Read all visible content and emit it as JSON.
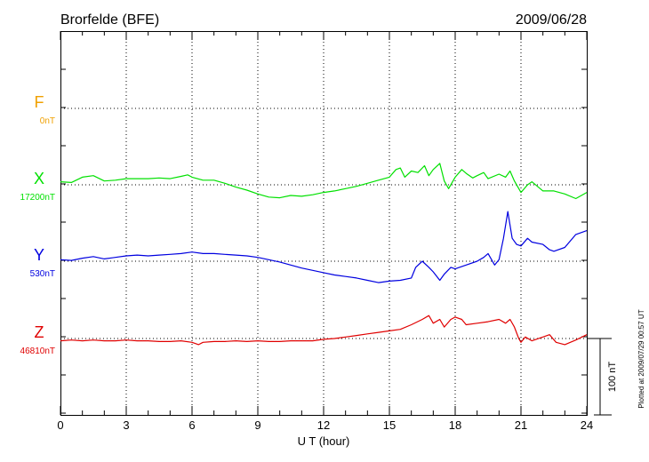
{
  "header": {
    "station": "Brorfelde (BFE)",
    "date": "2009/06/28"
  },
  "footer": {
    "plotted": "Plotted at 2009/07/29 00:57 UT"
  },
  "chart_data": {
    "type": "line",
    "xlabel": "U T (hour)",
    "xlim": [
      0,
      24
    ],
    "x_ticks": [
      0,
      3,
      6,
      9,
      12,
      15,
      18,
      21,
      24
    ],
    "grid": true,
    "scale_bar": {
      "label": "100 nT",
      "nT": 100
    },
    "channels": [
      {
        "name": "F",
        "baseline": "0nT",
        "color": "#f0a000",
        "data": []
      },
      {
        "name": "X",
        "baseline": "17200nT",
        "color": "#00e000",
        "data": [
          [
            0,
            -4
          ],
          [
            0.5,
            -3
          ],
          [
            1,
            -10
          ],
          [
            1.5,
            -12
          ],
          [
            2,
            -5
          ],
          [
            2.5,
            -6
          ],
          [
            3,
            -8
          ],
          [
            3.5,
            -8
          ],
          [
            4,
            -8
          ],
          [
            4.5,
            -9
          ],
          [
            5,
            -8
          ],
          [
            5.5,
            -11
          ],
          [
            5.8,
            -13
          ],
          [
            6,
            -10
          ],
          [
            6.5,
            -6
          ],
          [
            7,
            -6
          ],
          [
            7.5,
            -2
          ],
          [
            8,
            3
          ],
          [
            8.5,
            7
          ],
          [
            9,
            12
          ],
          [
            9.5,
            16
          ],
          [
            10,
            17
          ],
          [
            10.5,
            14
          ],
          [
            11,
            15
          ],
          [
            11.5,
            13
          ],
          [
            12,
            10
          ],
          [
            12.5,
            8
          ],
          [
            13,
            5
          ],
          [
            13.5,
            2
          ],
          [
            14,
            -2
          ],
          [
            14.5,
            -6
          ],
          [
            15,
            -10
          ],
          [
            15.3,
            -20
          ],
          [
            15.5,
            -22
          ],
          [
            15.7,
            -10
          ],
          [
            16,
            -18
          ],
          [
            16.3,
            -16
          ],
          [
            16.6,
            -25
          ],
          [
            16.8,
            -12
          ],
          [
            17,
            -20
          ],
          [
            17.3,
            -28
          ],
          [
            17.5,
            -5
          ],
          [
            17.7,
            5
          ],
          [
            18,
            -10
          ],
          [
            18.3,
            -20
          ],
          [
            18.5,
            -15
          ],
          [
            18.8,
            -9
          ],
          [
            19,
            -12
          ],
          [
            19.3,
            -16
          ],
          [
            19.5,
            -8
          ],
          [
            20,
            -14
          ],
          [
            20.3,
            -10
          ],
          [
            20.5,
            -18
          ],
          [
            20.7,
            -5
          ],
          [
            21,
            10
          ],
          [
            21.3,
            0
          ],
          [
            21.5,
            -4
          ],
          [
            22,
            8
          ],
          [
            22.5,
            8
          ],
          [
            23,
            12
          ],
          [
            23.5,
            18
          ],
          [
            24,
            10
          ]
        ]
      },
      {
        "name": "Y",
        "baseline": "530nT",
        "color": "#0000e0",
        "data": [
          [
            0,
            -2
          ],
          [
            0.5,
            -1
          ],
          [
            1,
            -4
          ],
          [
            1.5,
            -6
          ],
          [
            2,
            -3
          ],
          [
            2.5,
            -5
          ],
          [
            3,
            -7
          ],
          [
            3.5,
            -8
          ],
          [
            4,
            -7
          ],
          [
            4.5,
            -8
          ],
          [
            5,
            -9
          ],
          [
            5.5,
            -10
          ],
          [
            6,
            -12
          ],
          [
            6.5,
            -10
          ],
          [
            7,
            -10
          ],
          [
            7.5,
            -9
          ],
          [
            8,
            -8
          ],
          [
            8.5,
            -7
          ],
          [
            9,
            -5
          ],
          [
            9.5,
            -2
          ],
          [
            10,
            1
          ],
          [
            10.5,
            5
          ],
          [
            11,
            9
          ],
          [
            11.5,
            12
          ],
          [
            12,
            15
          ],
          [
            12.5,
            18
          ],
          [
            13,
            20
          ],
          [
            13.5,
            22
          ],
          [
            14,
            25
          ],
          [
            14.5,
            28
          ],
          [
            15,
            26
          ],
          [
            15.5,
            25
          ],
          [
            16,
            22
          ],
          [
            16.2,
            8
          ],
          [
            16.5,
            0
          ],
          [
            16.8,
            8
          ],
          [
            17,
            14
          ],
          [
            17.3,
            25
          ],
          [
            17.5,
            17
          ],
          [
            17.8,
            8
          ],
          [
            18,
            10
          ],
          [
            18.5,
            5
          ],
          [
            19,
            0
          ],
          [
            19.3,
            -5
          ],
          [
            19.5,
            -10
          ],
          [
            19.8,
            5
          ],
          [
            20,
            -2
          ],
          [
            20.2,
            -30
          ],
          [
            20.4,
            -65
          ],
          [
            20.6,
            -30
          ],
          [
            20.8,
            -22
          ],
          [
            21,
            -20
          ],
          [
            21.3,
            -30
          ],
          [
            21.5,
            -25
          ],
          [
            22,
            -22
          ],
          [
            22.3,
            -15
          ],
          [
            22.5,
            -13
          ],
          [
            23,
            -18
          ],
          [
            23.5,
            -35
          ],
          [
            24,
            -40
          ]
        ]
      },
      {
        "name": "Z",
        "baseline": "46810nT",
        "color": "#e00000",
        "data": [
          [
            0,
            3
          ],
          [
            0.5,
            2
          ],
          [
            1,
            3
          ],
          [
            1.5,
            2
          ],
          [
            2,
            3
          ],
          [
            2.5,
            3
          ],
          [
            3,
            2
          ],
          [
            3.5,
            3
          ],
          [
            4,
            3
          ],
          [
            4.5,
            4
          ],
          [
            5,
            4
          ],
          [
            5.5,
            3
          ],
          [
            6,
            5
          ],
          [
            6.3,
            8
          ],
          [
            6.5,
            5
          ],
          [
            7,
            4
          ],
          [
            7.5,
            4
          ],
          [
            8,
            3
          ],
          [
            8.5,
            4
          ],
          [
            9,
            3
          ],
          [
            9.5,
            4
          ],
          [
            10,
            4
          ],
          [
            10.5,
            3
          ],
          [
            11,
            3
          ],
          [
            11.5,
            3
          ],
          [
            12,
            1
          ],
          [
            12.5,
            0
          ],
          [
            13,
            -2
          ],
          [
            13.5,
            -4
          ],
          [
            14,
            -6
          ],
          [
            14.5,
            -8
          ],
          [
            15,
            -10
          ],
          [
            15.5,
            -12
          ],
          [
            16,
            -18
          ],
          [
            16.5,
            -25
          ],
          [
            16.8,
            -30
          ],
          [
            17,
            -20
          ],
          [
            17.3,
            -25
          ],
          [
            17.5,
            -15
          ],
          [
            17.8,
            -25
          ],
          [
            18,
            -28
          ],
          [
            18.3,
            -25
          ],
          [
            18.5,
            -18
          ],
          [
            19,
            -20
          ],
          [
            19.5,
            -22
          ],
          [
            20,
            -25
          ],
          [
            20.3,
            -20
          ],
          [
            20.5,
            -25
          ],
          [
            20.7,
            -15
          ],
          [
            20.9,
            0
          ],
          [
            21,
            5
          ],
          [
            21.2,
            -2
          ],
          [
            21.5,
            3
          ],
          [
            22,
            -2
          ],
          [
            22.3,
            -5
          ],
          [
            22.6,
            5
          ],
          [
            23,
            8
          ],
          [
            23.5,
            2
          ],
          [
            24,
            -5
          ]
        ]
      }
    ]
  }
}
